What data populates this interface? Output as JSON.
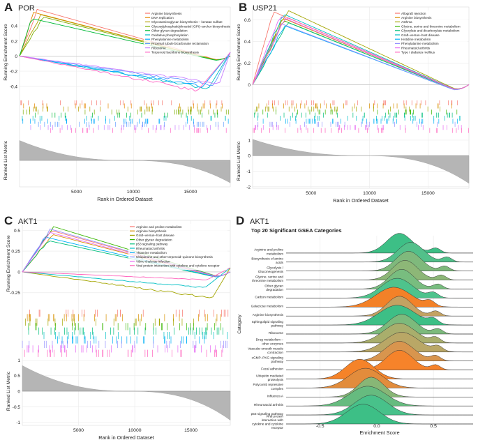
{
  "figure_panels": {
    "A": {
      "letter": "A",
      "gene": "POR"
    },
    "B": {
      "letter": "B",
      "gene": "USP21"
    },
    "C": {
      "letter": "C",
      "gene": "AKT1"
    },
    "D": {
      "letter": "D",
      "gene": "AKT1"
    }
  },
  "chart_data": [
    {
      "panel": "A",
      "type": "line",
      "title": "POR",
      "ylabel_top": "Running Enrichment Score",
      "ylabel_bottom": "Ranked List Metric",
      "xlabel": "Rank in Ordered Dataset",
      "xticks": [
        5000,
        10000,
        15000
      ],
      "xlim": [
        0,
        18500
      ],
      "yticks_top": [
        0.4,
        0.2,
        0.0,
        -0.2,
        -0.4
      ],
      "ylim_top": [
        -0.55,
        0.65
      ],
      "legend": [
        {
          "name": "Arginine biosynthesis",
          "color": "#f8766d"
        },
        {
          "name": "DNA replication",
          "color": "#e58700"
        },
        {
          "name": "Glycosaminoglycan biosynthesis – keratan sulfate",
          "color": "#b79f00"
        },
        {
          "name": "Glycosylphosphatidylinositol (GPI)–anchor biosynthesis",
          "color": "#7cae00"
        },
        {
          "name": "Other glycan degradation",
          "color": "#00ba38"
        },
        {
          "name": "Oxidative phosphorylation",
          "color": "#00bfc4"
        },
        {
          "name": "Phenylalanine metabolism",
          "color": "#00a9ff"
        },
        {
          "name": "Proximal tubule bicarbonate reclamation",
          "color": "#619cff"
        },
        {
          "name": "Ribosome",
          "color": "#c77cff"
        },
        {
          "name": "Terpenoid backbone biosynthesis",
          "color": "#ff61c3"
        }
      ],
      "series": [
        {
          "name": "Arginine biosynthesis",
          "peak": 0.62,
          "peak_rank": 1500
        },
        {
          "name": "DNA replication",
          "peak": 0.58,
          "peak_rank": 1200
        },
        {
          "name": "Glycosaminoglycan biosynthesis – keratan sulfate",
          "peak": 0.55,
          "peak_rank": 1800
        },
        {
          "name": "Glycosylphosphatidylinositol (GPI)–anchor biosynthesis",
          "peak": 0.52,
          "peak_rank": 2000
        },
        {
          "name": "Other glycan degradation",
          "peak": 0.5,
          "peak_rank": 1000
        },
        {
          "name": "Oxidative phosphorylation",
          "peak": -0.45,
          "peak_rank": 16500
        },
        {
          "name": "Phenylalanine metabolism",
          "peak": -0.42,
          "peak_rank": 16000
        },
        {
          "name": "Proximal tubule bicarbonate reclamation",
          "peak": -0.4,
          "peak_rank": 17000
        },
        {
          "name": "Ribosome",
          "peak": -0.38,
          "peak_rank": 17500
        },
        {
          "name": "Terpenoid backbone biosynthesis",
          "peak": -0.48,
          "peak_rank": 15500
        }
      ]
    },
    {
      "panel": "B",
      "type": "line",
      "title": "USP21",
      "ylabel_top": "Running Enrichment Score",
      "ylabel_bottom": "Ranked List Metric",
      "xlabel": "Rank in Ordered Dataset",
      "xticks": [
        5000,
        10000,
        15000
      ],
      "xlim": [
        0,
        18500
      ],
      "yticks_top": [
        0.6,
        0.4,
        0.2,
        0.0
      ],
      "ylim_top": [
        -0.12,
        0.72
      ],
      "yticks_bottom": [
        1,
        0,
        -1,
        -2
      ],
      "ylim_bottom": [
        -2.1,
        1.4
      ],
      "legend": [
        {
          "name": "Allograft rejection",
          "color": "#f8766d"
        },
        {
          "name": "Arginine biosynthesis",
          "color": "#d89000"
        },
        {
          "name": "Asthma",
          "color": "#a3a500"
        },
        {
          "name": "Glycine, serine and threonine metabolism",
          "color": "#39b600"
        },
        {
          "name": "Glyoxylate and dicarboxylate metabolism",
          "color": "#00bf7d"
        },
        {
          "name": "Graft–versus–host disease",
          "color": "#00bfc4"
        },
        {
          "name": "Histidine metabolism",
          "color": "#00b0f6"
        },
        {
          "name": "Phenylalanine metabolism",
          "color": "#9590ff"
        },
        {
          "name": "Rheumatoid arthritis",
          "color": "#e76bf3"
        },
        {
          "name": "Type I diabetes mellitus",
          "color": "#ff62bc"
        }
      ],
      "series": [
        {
          "name": "Allograft rejection",
          "peak": 0.68
        },
        {
          "name": "Arginine biosynthesis",
          "peak": 0.62
        },
        {
          "name": "Asthma",
          "peak": 0.7
        },
        {
          "name": "Glycine, serine and threonine metabolism",
          "peak": 0.6
        },
        {
          "name": "Glyoxylate and dicarboxylate metabolism",
          "peak": 0.58
        },
        {
          "name": "Graft–versus–host disease",
          "peak": 0.66
        },
        {
          "name": "Histidine metabolism",
          "peak": 0.55
        },
        {
          "name": "Phenylalanine metabolism",
          "peak": 0.57
        },
        {
          "name": "Rheumatoid arthritis",
          "peak": 0.64
        },
        {
          "name": "Type I diabetes mellitus",
          "peak": 0.63
        }
      ]
    },
    {
      "panel": "C",
      "type": "line",
      "title": "AKT1",
      "ylabel_top": "Running Enrichment Score",
      "ylabel_bottom": "Ranked List Metric",
      "xlabel": "Rank in Ordered Dataset",
      "xticks": [
        5000,
        10000,
        15000
      ],
      "xlim": [
        0,
        18500
      ],
      "yticks_top": [
        0.5,
        0.25,
        0.0,
        -0.25
      ],
      "ylim_top": [
        -0.42,
        0.62
      ],
      "yticks_bottom": [
        1.0,
        0.5,
        0.0,
        -0.5,
        -1.0
      ],
      "ylim_bottom": [
        -1.1,
        1.1
      ],
      "legend": [
        {
          "name": "Arginine and proline metabolism",
          "color": "#f8766d"
        },
        {
          "name": "Arginine biosynthesis",
          "color": "#d89000"
        },
        {
          "name": "Graft–versus–host disease",
          "color": "#a3a500"
        },
        {
          "name": "Other glycan degradation",
          "color": "#39b600"
        },
        {
          "name": "p53 signaling pathway",
          "color": "#00bf7d"
        },
        {
          "name": "Rheumatoid arthritis",
          "color": "#00bfc4"
        },
        {
          "name": "Thiamine metabolism",
          "color": "#00b0f6"
        },
        {
          "name": "Ubiquinone and other terpenoid–quinone biosynthesis",
          "color": "#9590ff"
        },
        {
          "name": "Vibrio cholerae infection",
          "color": "#e76bf3"
        },
        {
          "name": "Viral protein interaction with cytokine and cytokine receptor",
          "color": "#ff62bc"
        }
      ],
      "series": [
        {
          "name": "Arginine and proline metabolism",
          "peak": 0.5
        },
        {
          "name": "Arginine biosynthesis",
          "peak": 0.45
        },
        {
          "name": "Graft–versus–host disease",
          "peak": -0.33
        },
        {
          "name": "Other glycan degradation",
          "peak": 0.55
        },
        {
          "name": "p53 signaling pathway",
          "peak": 0.38
        },
        {
          "name": "Rheumatoid arthritis",
          "peak": -0.2
        },
        {
          "name": "Thiamine metabolism",
          "peak": 0.42
        },
        {
          "name": "Ubiquinone and other terpenoid–quinone biosynthesis",
          "peak": 0.52
        },
        {
          "name": "Vibrio cholerae infection",
          "peak": 0.48
        },
        {
          "name": "Viral protein interaction with cytokine and cytokine receptor",
          "peak": -0.1
        }
      ]
    },
    {
      "panel": "D",
      "type": "ridgeline",
      "title": "Top 20 Significant GSEA Categories",
      "xlabel": "Enrichment Score",
      "ylabel": "Category",
      "xticks": [
        -0.5,
        0.0,
        0.5
      ],
      "xlim": [
        -0.8,
        0.85
      ],
      "categories": [
        {
          "label": "Arginine and proline metabolism",
          "mean": 0.2,
          "color": "#3dbf86"
        },
        {
          "label": "Biosynthesis of amino acids",
          "mean": 0.3,
          "color": "#52c08a"
        },
        {
          "label": "Glycolysis / Gluconeogenesis",
          "mean": 0.28,
          "color": "#7fb97c"
        },
        {
          "label": "Glycine, serine and threonine metabolism",
          "mean": 0.25,
          "color": "#8db777"
        },
        {
          "label": "Other glycan degradation",
          "mean": 0.22,
          "color": "#78bd7f"
        },
        {
          "label": "Carbon metabolism",
          "mean": 0.18,
          "color": "#4ec38c"
        },
        {
          "label": "Galactose metabolism",
          "mean": 0.15,
          "color": "#f38128"
        },
        {
          "label": "Arginine biosynthesis",
          "mean": 0.2,
          "color": "#c3a262"
        },
        {
          "label": "Sphingolipid signaling pathway",
          "mean": 0.18,
          "color": "#3dbf86"
        },
        {
          "label": "Ribosome",
          "mean": 0.22,
          "color": "#7cba7c"
        },
        {
          "label": "Drug metabolism – other enzymes",
          "mean": 0.2,
          "color": "#a9ae6c"
        },
        {
          "label": "Vascular smooth muscle contraction",
          "mean": 0.22,
          "color": "#b9a766"
        },
        {
          "label": "cGMP–PKG signaling pathway",
          "mean": 0.2,
          "color": "#d8954e"
        },
        {
          "label": "Focal adhesion",
          "mean": 0.2,
          "color": "#f6832a"
        },
        {
          "label": "Ubiquitin mediated proteolysis",
          "mean": -0.15,
          "color": "#f58329"
        },
        {
          "label": "Polycomb repressive complex",
          "mean": -0.1,
          "color": "#e28c3c"
        },
        {
          "label": "Influenza A",
          "mean": -0.05,
          "color": "#88b676"
        },
        {
          "label": "Rheumatoid arthritis",
          "mean": -0.08,
          "color": "#66bb7f"
        },
        {
          "label": "p53 signaling pathway",
          "mean": -0.05,
          "color": "#48c18a"
        },
        {
          "label": "Viral protein interaction with cytokine and cytokine receptor",
          "mean": -0.12,
          "color": "#3dbf86"
        }
      ]
    }
  ]
}
